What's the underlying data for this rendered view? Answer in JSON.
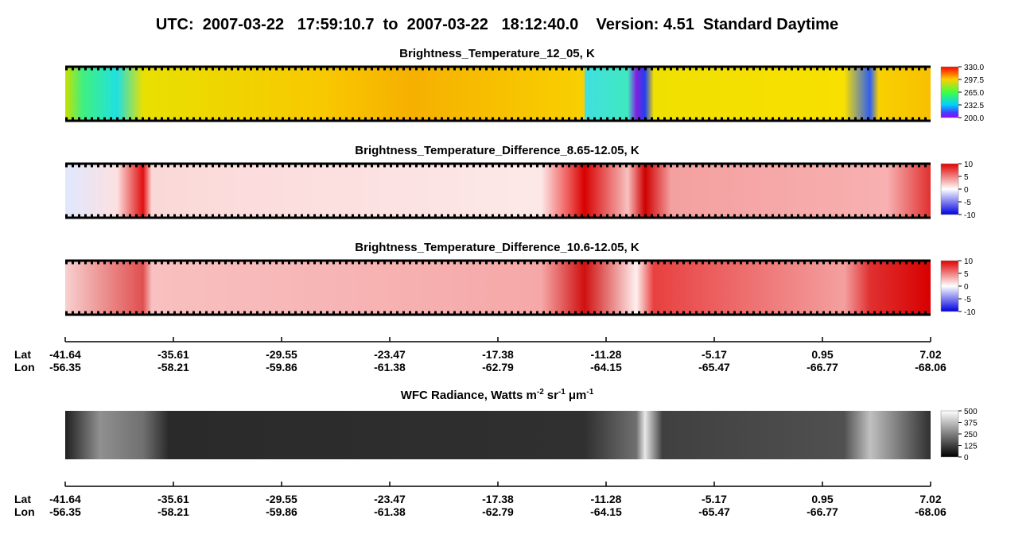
{
  "header": {
    "title": "UTC:  2007-03-22   17:59:10.7  to  2007-03-22   18:12:40.0    Version: 4.51  Standard Daytime"
  },
  "panels": [
    {
      "title": "Brightness_Temperature_12_05, K",
      "colorbar_ticks": [
        {
          "value": 330,
          "label": "330.0"
        },
        {
          "value": 297.5,
          "label": "297.5"
        },
        {
          "value": 265,
          "label": "265.0"
        },
        {
          "value": 232.5,
          "label": "232.5"
        },
        {
          "value": 200,
          "label": "200.0"
        }
      ]
    },
    {
      "title": "Brightness_Temperature_Difference_8.65-12.05, K",
      "colorbar_ticks": [
        10,
        5,
        0,
        -5,
        -10
      ]
    },
    {
      "title": "Brightness_Temperature_Difference_10.6-12.05, K",
      "colorbar_ticks": [
        10,
        5,
        0,
        -5,
        -10
      ]
    }
  ],
  "wfc": {
    "title_parts": [
      "WFC Radiance, Watts m",
      "-2",
      "sr",
      "-1",
      "μm",
      "-1"
    ],
    "colorbar_ticks": [
      500,
      375,
      250,
      125,
      0
    ]
  },
  "axis": {
    "lat_label": "Lat",
    "lon_label": "Lon",
    "lat": [
      -41.64,
      -35.61,
      -29.55,
      -23.47,
      -17.38,
      -11.28,
      -5.17,
      0.95,
      7.02
    ],
    "lon": [
      -56.35,
      -58.21,
      -59.86,
      -61.38,
      -62.79,
      -64.15,
      -65.47,
      -66.77,
      -68.06
    ]
  }
}
